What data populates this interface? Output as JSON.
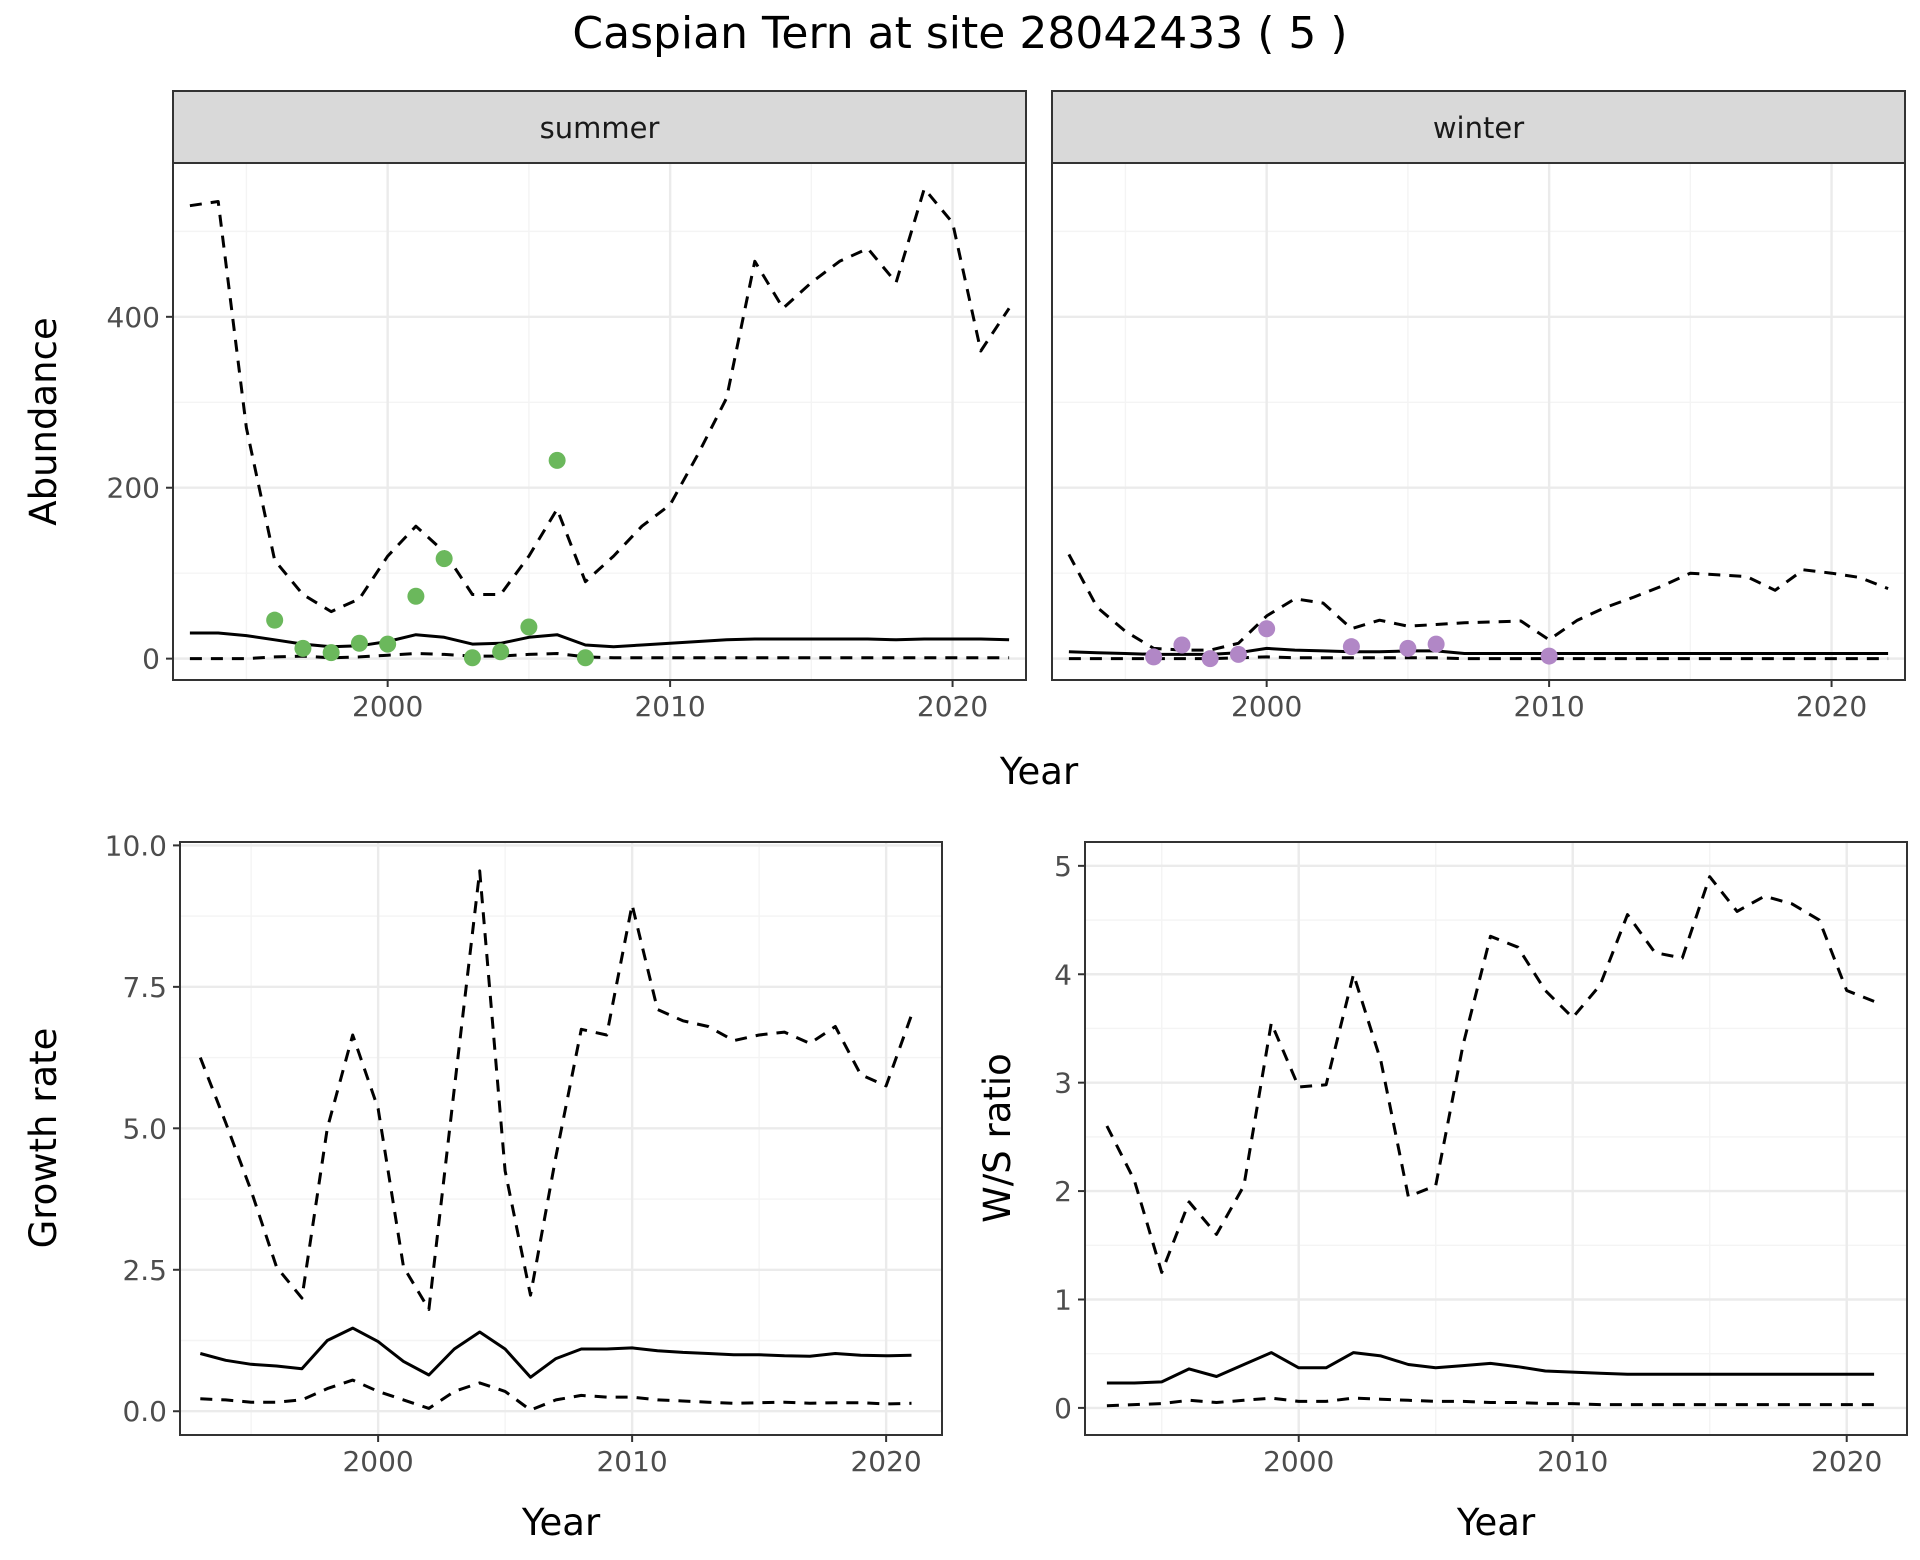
{
  "title": "Caspian Tern at site 28042433 ( 5 )",
  "colors": {
    "summer_points": "#6bb85c",
    "winter_points": "#b187c6",
    "line": "#000000",
    "strip_fill": "#d9d9d9"
  },
  "chart_data": [
    {
      "id": "abundance",
      "type": "line",
      "facets": [
        "summer",
        "winter"
      ],
      "xlabel": "Year",
      "ylabel": "Abundance",
      "xlim": [
        1992.4,
        2022.6
      ],
      "ylim": [
        -25,
        580
      ],
      "xticks": [
        2000,
        2010,
        2020
      ],
      "yticks": [
        0,
        200,
        400
      ],
      "panels": [
        {
          "facet": "summer",
          "series": [
            {
              "style": "solid",
              "x": [
                1993,
                1994,
                1995,
                1996,
                1997,
                1998,
                1999,
                2000,
                2001,
                2002,
                2003,
                2004,
                2005,
                2006,
                2007,
                2008,
                2009,
                2010,
                2011,
                2012,
                2013,
                2014,
                2015,
                2016,
                2017,
                2018,
                2019,
                2020,
                2021,
                2022
              ],
              "y": [
                30,
                30,
                27,
                22,
                17,
                14,
                15,
                20,
                28,
                25,
                17,
                18,
                25,
                28,
                16,
                14,
                16,
                18,
                20,
                22,
                23,
                23,
                23,
                23,
                23,
                22,
                23,
                23,
                23,
                22
              ]
            },
            {
              "style": "dashed",
              "x": [
                1993,
                1994,
                1995,
                1996,
                1997,
                1998,
                1999,
                2000,
                2001,
                2002,
                2003,
                2004,
                2005,
                2006,
                2007,
                2008,
                2009,
                2010,
                2011,
                2012,
                2013,
                2014,
                2015,
                2016,
                2017,
                2018,
                2019,
                2020,
                2021,
                2022
              ],
              "y": [
                530,
                535,
                270,
                115,
                75,
                55,
                70,
                120,
                155,
                125,
                75,
                75,
                120,
                175,
                90,
                120,
                155,
                180,
                240,
                305,
                465,
                410,
                440,
                465,
                480,
                440,
                550,
                510,
                360,
                410
              ]
            },
            {
              "style": "dashed",
              "x": [
                1993,
                1994,
                1995,
                1996,
                1997,
                1998,
                1999,
                2000,
                2001,
                2002,
                2003,
                2004,
                2005,
                2006,
                2007,
                2008,
                2009,
                2010,
                2011,
                2012,
                2013,
                2014,
                2015,
                2016,
                2017,
                2018,
                2019,
                2020,
                2021,
                2022
              ],
              "y": [
                0,
                0,
                0,
                2,
                3,
                1,
                2,
                4,
                6,
                5,
                3,
                3,
                5,
                6,
                2,
                1,
                1,
                1,
                1,
                1,
                1,
                1,
                1,
                1,
                1,
                1,
                1,
                1,
                1,
                1
              ]
            }
          ],
          "points": {
            "x": [
              1996,
              1997,
              1998,
              1999,
              2000,
              2001,
              2002,
              2003,
              2004,
              2005,
              2006,
              2007
            ],
            "y": [
              45,
              12,
              7,
              18,
              17,
              73,
              117,
              1,
              8,
              37,
              232,
              1
            ]
          }
        },
        {
          "facet": "winter",
          "series": [
            {
              "style": "solid",
              "x": [
                1993,
                1994,
                1995,
                1996,
                1997,
                1998,
                1999,
                2000,
                2001,
                2002,
                2003,
                2004,
                2005,
                2006,
                2007,
                2008,
                2009,
                2010,
                2011,
                2012,
                2013,
                2014,
                2015,
                2016,
                2017,
                2018,
                2019,
                2020,
                2021,
                2022
              ],
              "y": [
                8,
                7,
                6,
                5,
                5,
                5,
                7,
                12,
                10,
                9,
                8,
                8,
                9,
                9,
                6,
                6,
                6,
                6,
                6,
                6,
                6,
                6,
                6,
                6,
                6,
                6,
                6,
                6,
                6,
                6
              ]
            },
            {
              "style": "dashed",
              "x": [
                1993,
                1994,
                1995,
                1996,
                1997,
                1998,
                1999,
                2000,
                2001,
                2002,
                2003,
                2004,
                2005,
                2006,
                2007,
                2008,
                2009,
                2010,
                2011,
                2012,
                2013,
                2014,
                2015,
                2016,
                2017,
                2018,
                2019,
                2020,
                2021,
                2022
              ],
              "y": [
                122,
                60,
                32,
                12,
                10,
                10,
                18,
                50,
                70,
                65,
                35,
                45,
                38,
                40,
                42,
                43,
                44,
                22,
                45,
                60,
                72,
                85,
                100,
                98,
                96,
                80,
                104,
                100,
                95,
                82
              ]
            },
            {
              "style": "dashed",
              "x": [
                1993,
                1994,
                1995,
                1996,
                1997,
                1998,
                1999,
                2000,
                2001,
                2002,
                2003,
                2004,
                2005,
                2006,
                2007,
                2008,
                2009,
                2010,
                2011,
                2012,
                2013,
                2014,
                2015,
                2016,
                2017,
                2018,
                2019,
                2020,
                2021,
                2022
              ],
              "y": [
                0,
                0,
                0,
                0,
                0,
                0,
                1,
                2,
                1,
                1,
                1,
                1,
                1,
                1,
                0,
                0,
                0,
                0,
                0,
                0,
                0,
                0,
                0,
                0,
                0,
                0,
                0,
                0,
                0,
                0
              ]
            }
          ],
          "points": {
            "x": [
              1996,
              1997,
              1998,
              1999,
              2000,
              2003,
              2005,
              2006,
              2010
            ],
            "y": [
              2,
              16,
              0,
              5,
              35,
              14,
              12,
              17,
              3
            ]
          }
        }
      ]
    },
    {
      "id": "growth",
      "type": "line",
      "xlabel": "Year",
      "ylabel": "Growth rate",
      "xlim": [
        1992.2,
        2022.2
      ],
      "ylim": [
        -0.42,
        10.06
      ],
      "xticks": [
        2000,
        2010,
        2020
      ],
      "yticks": [
        0.0,
        2.5,
        5.0,
        7.5,
        10.0
      ],
      "ytick_labels": [
        "0.0",
        "2.5",
        "5.0",
        "7.5",
        "10.0"
      ],
      "series": [
        {
          "style": "solid",
          "x": [
            1993,
            1994,
            1995,
            1996,
            1997,
            1998,
            1999,
            2000,
            2001,
            2002,
            2003,
            2004,
            2005,
            2006,
            2007,
            2008,
            2009,
            2010,
            2011,
            2012,
            2013,
            2014,
            2015,
            2016,
            2017,
            2018,
            2019,
            2020,
            2021
          ],
          "y": [
            1.02,
            0.9,
            0.83,
            0.8,
            0.75,
            1.25,
            1.47,
            1.23,
            0.88,
            0.64,
            1.1,
            1.4,
            1.1,
            0.6,
            0.93,
            1.1,
            1.1,
            1.12,
            1.07,
            1.04,
            1.02,
            1.0,
            1.0,
            0.98,
            0.97,
            1.02,
            0.99,
            0.98,
            0.99
          ]
        },
        {
          "style": "dashed",
          "x": [
            1993,
            1994,
            1995,
            1996,
            1997,
            1998,
            1999,
            2000,
            2001,
            2002,
            2003,
            2004,
            2005,
            2006,
            2007,
            2008,
            2009,
            2010,
            2011,
            2012,
            2013,
            2014,
            2015,
            2016,
            2017,
            2018,
            2019,
            2020,
            2021
          ],
          "y": [
            6.25,
            5.1,
            3.9,
            2.55,
            2.0,
            5.0,
            6.65,
            5.35,
            2.55,
            1.8,
            5.7,
            9.55,
            4.25,
            2.05,
            4.5,
            6.75,
            6.65,
            8.95,
            7.1,
            6.9,
            6.8,
            6.55,
            6.65,
            6.7,
            6.5,
            6.8,
            5.95,
            5.75,
            7.0
          ]
        },
        {
          "style": "dashed",
          "x": [
            1993,
            1994,
            1995,
            1996,
            1997,
            1998,
            1999,
            2000,
            2001,
            2002,
            2003,
            2004,
            2005,
            2006,
            2007,
            2008,
            2009,
            2010,
            2011,
            2012,
            2013,
            2014,
            2015,
            2016,
            2017,
            2018,
            2019,
            2020,
            2021
          ],
          "y": [
            0.22,
            0.2,
            0.16,
            0.16,
            0.2,
            0.4,
            0.55,
            0.35,
            0.2,
            0.05,
            0.35,
            0.5,
            0.35,
            0.02,
            0.2,
            0.28,
            0.25,
            0.25,
            0.2,
            0.18,
            0.16,
            0.14,
            0.15,
            0.16,
            0.14,
            0.15,
            0.15,
            0.13,
            0.14
          ]
        }
      ]
    },
    {
      "id": "ws_ratio",
      "type": "line",
      "xlabel": "Year",
      "ylabel": "W/S ratio",
      "xlim": [
        1992.2,
        2022.2
      ],
      "ylim": [
        -0.25,
        5.22
      ],
      "xticks": [
        2000,
        2010,
        2020
      ],
      "yticks": [
        0,
        1,
        2,
        3,
        4,
        5
      ],
      "series": [
        {
          "style": "solid",
          "x": [
            1993,
            1994,
            1995,
            1996,
            1997,
            1998,
            1999,
            2000,
            2001,
            2002,
            2003,
            2004,
            2005,
            2006,
            2007,
            2008,
            2009,
            2010,
            2011,
            2012,
            2013,
            2014,
            2015,
            2016,
            2017,
            2018,
            2019,
            2020,
            2021
          ],
          "y": [
            0.23,
            0.23,
            0.24,
            0.36,
            0.29,
            0.4,
            0.51,
            0.37,
            0.37,
            0.51,
            0.48,
            0.4,
            0.37,
            0.39,
            0.41,
            0.38,
            0.34,
            0.33,
            0.32,
            0.31,
            0.31,
            0.31,
            0.31,
            0.31,
            0.31,
            0.31,
            0.31,
            0.31,
            0.31
          ]
        },
        {
          "style": "dashed",
          "x": [
            1993,
            1994,
            1995,
            1996,
            1997,
            1998,
            1999,
            2000,
            2001,
            2002,
            2003,
            2004,
            2005,
            2006,
            2007,
            2008,
            2009,
            2010,
            2011,
            2012,
            2013,
            2014,
            2015,
            2016,
            2017,
            2018,
            2019,
            2020,
            2021
          ],
          "y": [
            2.6,
            2.1,
            1.25,
            1.9,
            1.6,
            2.05,
            3.55,
            2.96,
            2.98,
            4.0,
            3.2,
            1.95,
            2.05,
            3.35,
            4.35,
            4.25,
            3.85,
            3.6,
            3.9,
            4.55,
            4.2,
            4.15,
            4.9,
            4.58,
            4.72,
            4.65,
            4.5,
            3.85,
            3.75
          ]
        },
        {
          "style": "dashed",
          "x": [
            1993,
            1994,
            1995,
            1996,
            1997,
            1998,
            1999,
            2000,
            2001,
            2002,
            2003,
            2004,
            2005,
            2006,
            2007,
            2008,
            2009,
            2010,
            2011,
            2012,
            2013,
            2014,
            2015,
            2016,
            2017,
            2018,
            2019,
            2020,
            2021
          ],
          "y": [
            0.02,
            0.03,
            0.04,
            0.07,
            0.05,
            0.07,
            0.09,
            0.06,
            0.06,
            0.09,
            0.08,
            0.07,
            0.06,
            0.06,
            0.05,
            0.05,
            0.04,
            0.04,
            0.03,
            0.03,
            0.03,
            0.03,
            0.03,
            0.03,
            0.03,
            0.03,
            0.03,
            0.03,
            0.03
          ]
        }
      ]
    }
  ]
}
